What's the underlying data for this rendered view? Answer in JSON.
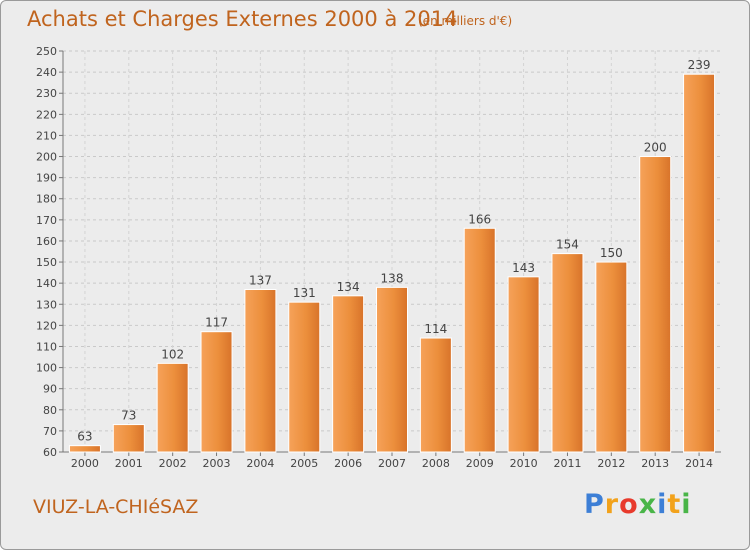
{
  "chart_data": {
    "type": "bar",
    "title": "Achats et Charges Externes 2000 à 2014",
    "subtitle": "(en milliers d'€)",
    "categories": [
      "2000",
      "2001",
      "2002",
      "2003",
      "2004",
      "2005",
      "2006",
      "2007",
      "2008",
      "2009",
      "2010",
      "2011",
      "2012",
      "2013",
      "2014"
    ],
    "values": [
      63,
      73,
      102,
      117,
      137,
      131,
      134,
      138,
      114,
      166,
      143,
      154,
      150,
      200,
      239
    ],
    "ylim": [
      60,
      250
    ],
    "yticks": [
      60,
      70,
      80,
      90,
      100,
      110,
      120,
      130,
      140,
      150,
      160,
      170,
      180,
      190,
      200,
      210,
      220,
      230,
      240,
      250
    ],
    "grid": true,
    "legend": "none",
    "bar_color": "#e8883a"
  },
  "footer": {
    "commune": "VIUZ-LA-CHIéSAZ"
  },
  "brand": {
    "letters": [
      "P",
      "r",
      "o",
      "x",
      "i",
      "t",
      "i"
    ],
    "colors": [
      "#3d7fd6",
      "#f2a21b",
      "#e83a2c",
      "#49b548",
      "#3d7fd6",
      "#f2a21b",
      "#49b548"
    ]
  }
}
